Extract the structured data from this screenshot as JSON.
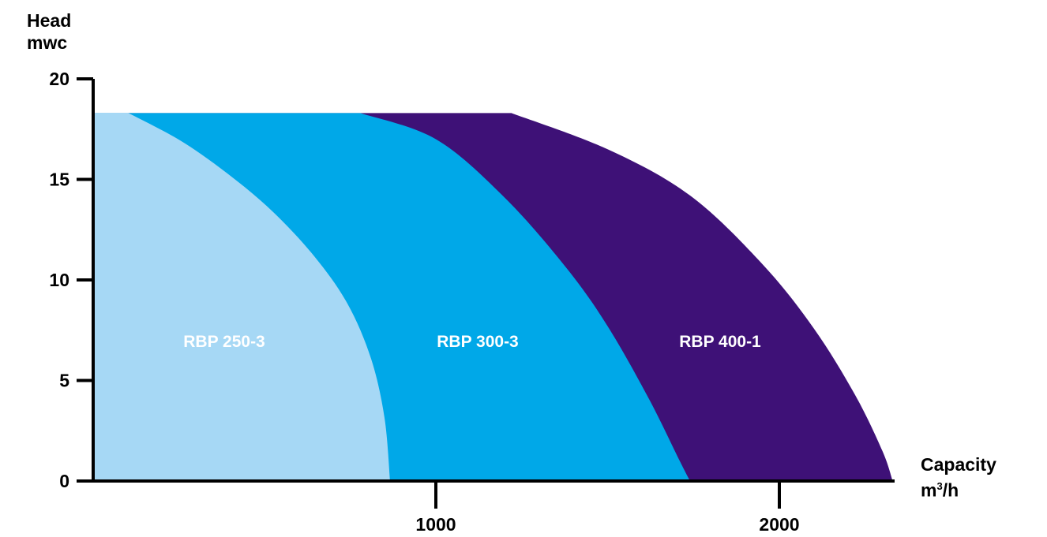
{
  "chart_data": {
    "type": "area",
    "ylabel": "Head",
    "ylabel_unit": "mwc",
    "xlabel": "Capacity",
    "xlabel_unit_base": "m",
    "xlabel_unit_sup": "3",
    "xlabel_unit_rest": "/h",
    "xlim": [
      -1000,
      2340
    ],
    "ylim": [
      0,
      20
    ],
    "y_ticks": [
      "0",
      "5",
      "10",
      "15",
      "20"
    ],
    "y_tick_values": [
      0,
      5,
      10,
      15,
      20
    ],
    "x_ticks": [
      "1000",
      "2000"
    ],
    "x_tick_values": [
      1000,
      2000
    ],
    "grid": false,
    "legend": "none",
    "series": [
      {
        "name": "RBP 400-1",
        "color": "#3E1177",
        "x": [
          1220,
          1500,
          1740,
          1950,
          2100,
          2220,
          2300,
          2330
        ],
        "y": [
          18.3,
          16.5,
          14.2,
          10.8,
          7.6,
          4.3,
          1.5,
          0
        ]
      },
      {
        "name": "RBP 300-3",
        "color": "#00A8E8",
        "x": [
          780,
          1000,
          1200,
          1380,
          1500,
          1620,
          1710,
          1740
        ],
        "y": [
          18.3,
          17.0,
          14.1,
          10.6,
          7.7,
          4.1,
          1.0,
          0
        ]
      },
      {
        "name": "RBP 250-3",
        "color": "#A6D8F5",
        "x": [
          -890,
          -600,
          -320,
          -100,
          20,
          120,
          200,
          -130,
          -140
        ],
        "y": [
          18.3,
          16.4,
          13.0,
          9.1,
          6.4,
          3.6,
          0.9,
          0,
          0
        ]
      }
    ],
    "region_labels": [
      {
        "text": "RBP 250-3",
        "x": -620,
        "y": 7.0
      },
      {
        "text": "RBP 300-3",
        "x": 120,
        "y": 7.0
      },
      {
        "text": "RBP 400-1",
        "x": 950,
        "y": 7.0
      }
    ]
  }
}
